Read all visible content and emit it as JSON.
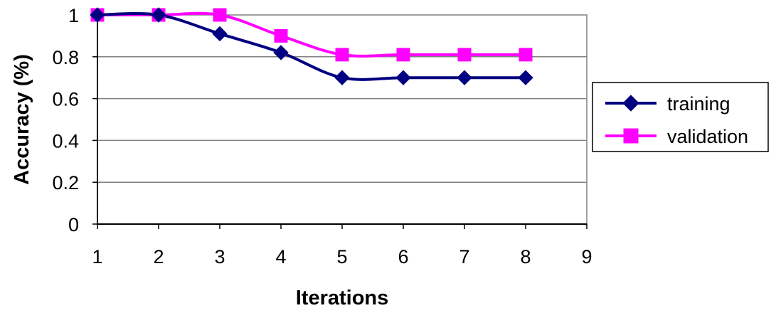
{
  "chart_data": {
    "type": "line",
    "title": "",
    "xlabel": "Iterations",
    "ylabel": "Accuracy (%)",
    "xlim": [
      1,
      9
    ],
    "ylim": [
      0,
      1
    ],
    "x_ticks": [
      "1",
      "2",
      "3",
      "4",
      "5",
      "6",
      "7",
      "8",
      "9"
    ],
    "y_ticks": [
      "0",
      "0.2",
      "0.4",
      "0.6",
      "0.8",
      "1"
    ],
    "grid": "horizontal",
    "legend_position": "right",
    "x": [
      1,
      2,
      3,
      4,
      5,
      6,
      7,
      8
    ],
    "series": [
      {
        "name": "training",
        "marker": "diamond",
        "color": "#000080",
        "values": [
          1.0,
          1.0,
          0.91,
          0.82,
          0.7,
          0.7,
          0.7,
          0.7
        ]
      },
      {
        "name": "validation",
        "marker": "square",
        "color": "#FF00FF",
        "values": [
          1.0,
          1.0,
          1.0,
          0.9,
          0.81,
          0.81,
          0.81,
          0.81
        ]
      }
    ]
  }
}
